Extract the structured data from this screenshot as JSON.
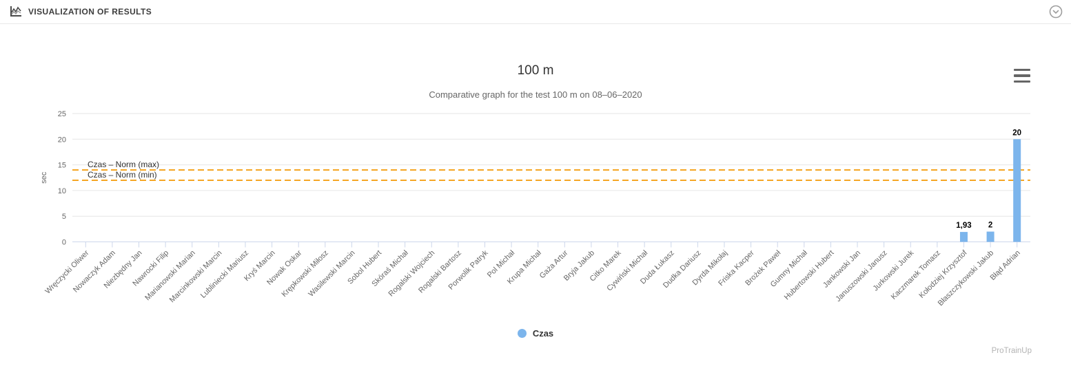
{
  "header": {
    "title": "VISUALIZATION OF RESULTS",
    "icon": "chart-icon",
    "collapse_icon": "chevron-down-circle-icon"
  },
  "chart": {
    "export_menu_icon": "hamburger-menu-icon",
    "watermark": "ProTrainUp"
  },
  "chart_data": {
    "type": "bar",
    "title": "100 m",
    "subtitle": "Comparative graph for the test 100 m on 08–06–2020",
    "xlabel": "",
    "ylabel": "sec",
    "ylim": [
      0,
      25
    ],
    "yticks": [
      0,
      5,
      10,
      15,
      20,
      25
    ],
    "grid": true,
    "legend_position": "bottom",
    "decimal_separator": ",",
    "categories": [
      "Wręczycki Oliwer",
      "Nowaczyk Adam",
      "Niezbędny Jan",
      "Nawrocki Filip",
      "Marianowski Marian",
      "Marcinkowski Marcin",
      "Lubliniecki Mariusz",
      "Kryś Marcin",
      "Nowak Oskar",
      "Krępkowski Miłosz",
      "Wasilewski Marcin",
      "Sobol Hubert",
      "Skóraś Michał",
      "Rogalski Wojciech",
      "Rogalski Bartosz",
      "Porwolik Patryk",
      "Pol Michał",
      "Krupa Michał",
      "Gaża Artur",
      "Bryja Jakub",
      "Citko Marek",
      "Cywiński Michał",
      "Duda Łukasz",
      "Dudka Dariusz",
      "Dyrda Mikołaj",
      "Friska Kacper",
      "Brożek Paweł",
      "Gumny Michał",
      "Hubertowski Hubert",
      "Jankowski Jan",
      "Januszowski Janusz",
      "Jurkowski Jurek",
      "Kaczmarek Tomasz",
      "Kołodziej Krzysztof",
      "Błaszczykowski Jakub",
      "Błąd Adrian"
    ],
    "series": [
      {
        "name": "Czas",
        "color": "#7cb5ec",
        "values": [
          0,
          0,
          0,
          0,
          0,
          0,
          0,
          0,
          0,
          0,
          0,
          0,
          0,
          0,
          0,
          0,
          0,
          0,
          0,
          0,
          0,
          0,
          0,
          0,
          0,
          0,
          0,
          0,
          0,
          0,
          0,
          0,
          0,
          1.93,
          2,
          20
        ]
      }
    ],
    "visible_points": [
      {
        "category": "Kołodziej Krzysztof",
        "value": 1.93,
        "label": "1,93"
      },
      {
        "category": "Błaszczykowski Jakub",
        "value": 2,
        "label": "2"
      },
      {
        "category": "Błąd Adrian",
        "value": 20,
        "label": "20"
      }
    ],
    "plot_lines": [
      {
        "label": "Czas – Norm (max)",
        "value": 14,
        "color": "#f5a623",
        "style": "dashed"
      },
      {
        "label": "Czas – Norm (min)",
        "value": 12,
        "color": "#f5a623",
        "style": "dashed"
      }
    ],
    "legend": [
      {
        "label": "Czas",
        "color": "#7cb5ec"
      }
    ],
    "colors": {
      "bar": "#7cb5ec",
      "axis_line": "#ccd6eb",
      "gridline": "#e6e6e6",
      "axis_text": "#666666",
      "title_text": "#333333",
      "data_label": "#000000",
      "norm_line": "#f5a623"
    }
  }
}
